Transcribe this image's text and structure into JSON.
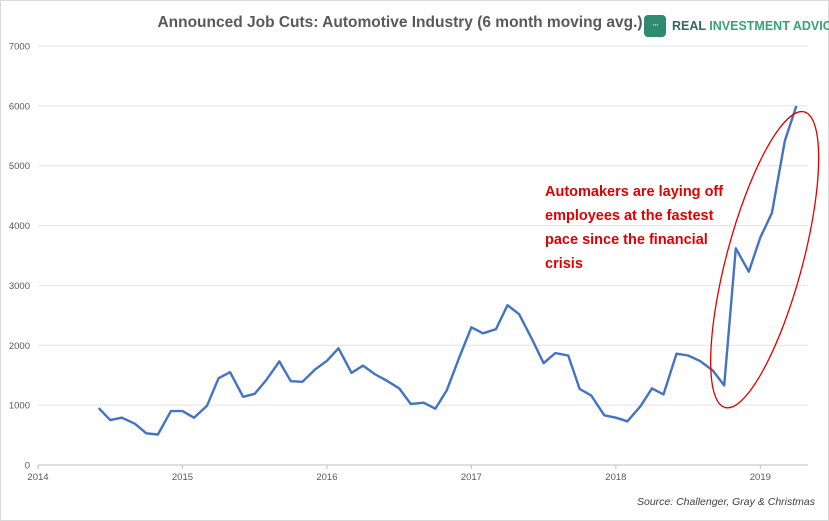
{
  "chart_data": {
    "type": "line",
    "title": "Announced Job Cuts: Automotive Industry (6 month moving avg.)",
    "xlabel": "",
    "ylabel": "",
    "ylim": [
      0,
      7000
    ],
    "xlim": [
      2014.0,
      2019.33
    ],
    "grid": "horizontal",
    "y_ticks": [
      0,
      1000,
      2000,
      3000,
      4000,
      5000,
      6000,
      7000
    ],
    "x_ticks": [
      2014,
      2015,
      2016,
      2017,
      2018,
      2019
    ],
    "line_color": "#4472c4",
    "series": [
      {
        "x": [
          2014.42,
          2014.5,
          2014.58,
          2014.67,
          2014.75,
          2014.83,
          2014.92,
          2015.0,
          2015.08,
          2015.17,
          2015.25,
          2015.33,
          2015.42,
          2015.5,
          2015.58,
          2015.67,
          2015.75,
          2015.83,
          2015.92,
          2016.0,
          2016.08,
          2016.17,
          2016.25,
          2016.33,
          2016.42,
          2016.5,
          2016.58,
          2016.67,
          2016.75,
          2016.83,
          2016.92,
          2017.0,
          2017.08,
          2017.17,
          2017.25,
          2017.33,
          2017.42,
          2017.5,
          2017.58,
          2017.67,
          2017.75,
          2017.83,
          2017.92,
          2018.0,
          2018.08,
          2018.17,
          2018.25,
          2018.33,
          2018.42,
          2018.5,
          2018.58,
          2018.67,
          2018.75,
          2018.83,
          2018.92,
          2019.0,
          2019.08,
          2019.17,
          2019.25
        ],
        "values": [
          950,
          750,
          790,
          690,
          530,
          510,
          900,
          900,
          790,
          990,
          1450,
          1550,
          1140,
          1190,
          1420,
          1730,
          1400,
          1390,
          1600,
          1740,
          1950,
          1540,
          1660,
          1520,
          1400,
          1280,
          1020,
          1040,
          940,
          1250,
          1820,
          2300,
          2200,
          2270,
          2670,
          2520,
          2100,
          1700,
          1870,
          1830,
          1270,
          1160,
          830,
          790,
          730,
          980,
          1280,
          1180,
          1860,
          1830,
          1740,
          1580,
          1330,
          3620,
          3230,
          3800,
          4210,
          5420,
          6000
        ]
      }
    ],
    "annotations": [
      {
        "text": "Automakers are laying off employees at the fastest pace since the financial crisis",
        "color": "#e00000"
      }
    ],
    "highlight": {
      "shape": "ellipse",
      "color": "#e00000"
    },
    "source": "Source: Challenger, Gray & Christmas"
  },
  "logo": {
    "mark": "···",
    "text_main": "REAL ",
    "text_accent": "INVESTMENT ADVICE",
    "text_tail": "",
    "icon": "chart-bubble-icon"
  }
}
